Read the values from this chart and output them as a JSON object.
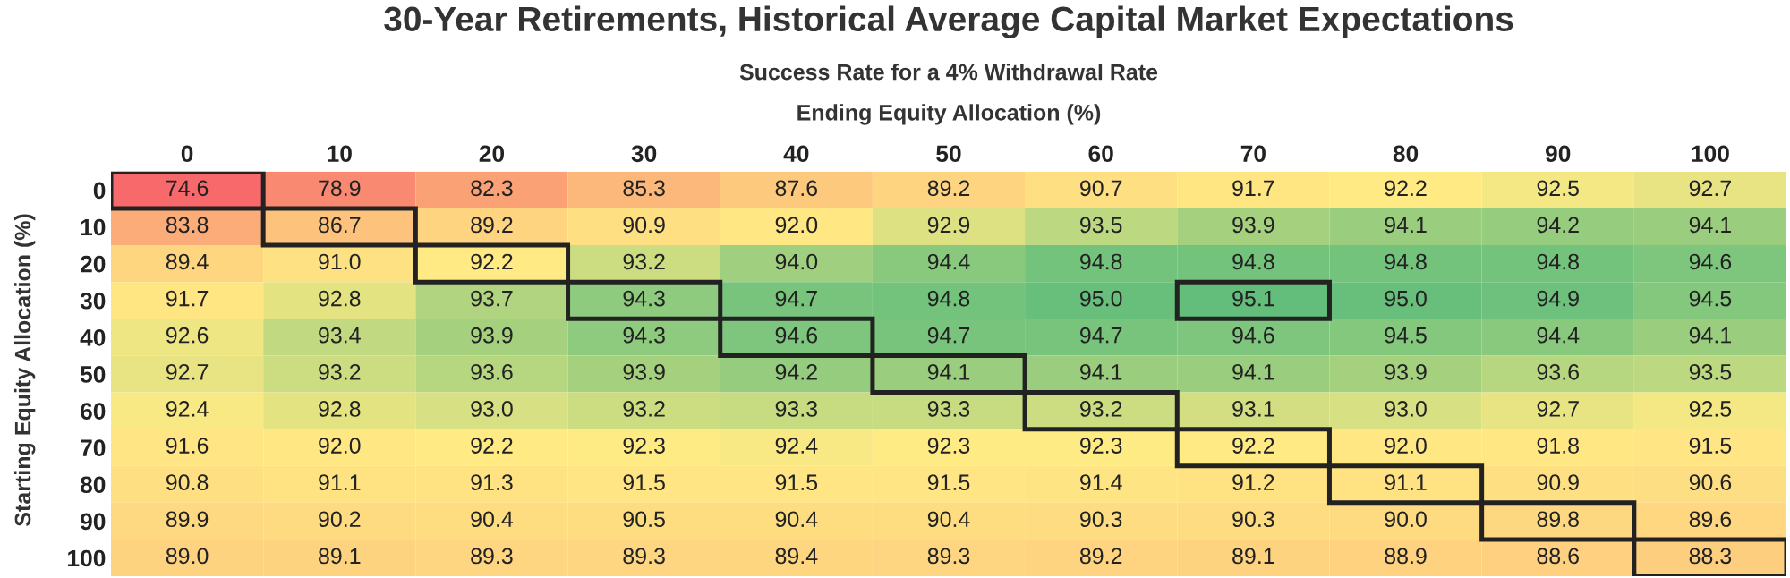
{
  "chart_data": {
    "type": "heatmap",
    "title": "30-Year Retirements, Historical Average Capital Market Expectations",
    "subtitle": "Success Rate for a 4% Withdrawal Rate",
    "xlabel": "Ending Equity Allocation (%)",
    "ylabel": "Starting Equity Allocation (%)",
    "categories": [
      "0",
      "10",
      "20",
      "30",
      "40",
      "50",
      "60",
      "70",
      "80",
      "90",
      "100"
    ],
    "y_categories": [
      "0",
      "10",
      "20",
      "30",
      "40",
      "50",
      "60",
      "70",
      "80",
      "90",
      "100"
    ],
    "cells": [
      [
        74.6,
        78.9,
        82.3,
        85.3,
        87.6,
        89.2,
        90.7,
        91.7,
        92.2,
        92.5,
        92.7
      ],
      [
        83.8,
        86.7,
        89.2,
        90.9,
        92.0,
        92.9,
        93.5,
        93.9,
        94.1,
        94.2,
        94.1
      ],
      [
        89.4,
        91.0,
        92.2,
        93.2,
        94.0,
        94.4,
        94.8,
        94.8,
        94.8,
        94.8,
        94.6
      ],
      [
        91.7,
        92.8,
        93.7,
        94.3,
        94.7,
        94.8,
        95.0,
        95.1,
        95.0,
        94.9,
        94.5
      ],
      [
        92.6,
        93.4,
        93.9,
        94.3,
        94.6,
        94.7,
        94.7,
        94.6,
        94.5,
        94.4,
        94.1
      ],
      [
        92.7,
        93.2,
        93.6,
        93.9,
        94.2,
        94.1,
        94.1,
        94.1,
        93.9,
        93.6,
        93.5
      ],
      [
        92.4,
        92.8,
        93.0,
        93.2,
        93.3,
        93.3,
        93.2,
        93.1,
        93.0,
        92.7,
        92.5
      ],
      [
        91.6,
        92.0,
        92.2,
        92.3,
        92.4,
        92.3,
        92.3,
        92.2,
        92.0,
        91.8,
        91.5
      ],
      [
        90.8,
        91.1,
        91.3,
        91.5,
        91.5,
        91.5,
        91.4,
        91.2,
        91.1,
        90.9,
        90.6
      ],
      [
        89.9,
        90.2,
        90.4,
        90.5,
        90.4,
        90.4,
        90.3,
        90.3,
        90.0,
        89.8,
        89.6
      ],
      [
        89.0,
        89.1,
        89.3,
        89.3,
        89.4,
        89.3,
        89.2,
        89.1,
        88.9,
        88.6,
        88.3
      ]
    ],
    "cell_labels": [
      [
        "74.6",
        "78.9",
        "82.3",
        "85.3",
        "87.6",
        "89.2",
        "90.7",
        "91.7",
        "92.2",
        "92.5",
        "92.7"
      ],
      [
        "83.8",
        "86.7",
        "89.2",
        "90.9",
        "92.0",
        "92.9",
        "93.5",
        "93.9",
        "94.1",
        "94.2",
        "94.1"
      ],
      [
        "89.4",
        "91.0",
        "92.2",
        "93.2",
        "94.0",
        "94.4",
        "94.8",
        "94.8",
        "94.8",
        "94.8",
        "94.6"
      ],
      [
        "91.7",
        "92.8",
        "93.7",
        "94.3",
        "94.7",
        "94.8",
        "95.0",
        "95.1",
        "95.0",
        "94.9",
        "94.5"
      ],
      [
        "92.6",
        "93.4",
        "93.9",
        "94.3",
        "94.6",
        "94.7",
        "94.7",
        "94.6",
        "94.5",
        "94.4",
        "94.1"
      ],
      [
        "92.7",
        "93.2",
        "93.6",
        "93.9",
        "94.2",
        "94.1",
        "94.1",
        "94.1",
        "93.9",
        "93.6",
        "93.5"
      ],
      [
        "92.4",
        "92.8",
        "93.0",
        "93.2",
        "93.3",
        "93.3",
        "93.2",
        "93.1",
        "93.0",
        "92.7",
        "92.5"
      ],
      [
        "91.6",
        "92.0",
        "92.2",
        "92.3",
        "92.4",
        "92.3",
        "92.3",
        "92.2",
        "92.0",
        "91.8",
        "91.5"
      ],
      [
        "90.8",
        "91.1",
        "91.3",
        "91.5",
        "91.5",
        "91.5",
        "91.4",
        "91.2",
        "91.1",
        "90.9",
        "90.6"
      ],
      [
        "89.9",
        "90.2",
        "90.4",
        "90.5",
        "90.4",
        "90.4",
        "90.3",
        "90.3",
        "90.0",
        "89.8",
        "89.6"
      ],
      [
        "89.0",
        "89.1",
        "89.3",
        "89.3",
        "89.4",
        "89.3",
        "89.2",
        "89.1",
        "88.9",
        "88.6",
        "88.3"
      ]
    ]
  }
}
